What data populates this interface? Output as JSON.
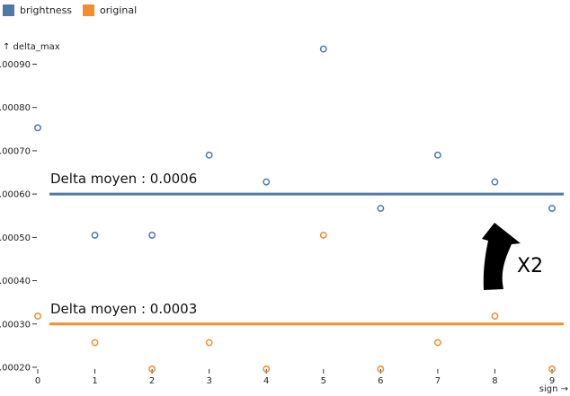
{
  "chart_data": {
    "type": "scatter",
    "xlabel": "sign →",
    "ylabel": "↑ delta_max",
    "xlim": [
      0,
      9
    ],
    "ylim": [
      0.0002,
      0.00093
    ],
    "grid": false,
    "legend_position": "top-left",
    "x_ticks": [
      0,
      1,
      2,
      3,
      4,
      5,
      6,
      7,
      8,
      9
    ],
    "y_ticks": [
      {
        "value": 0.0002,
        "label": ".00020"
      },
      {
        "value": 0.0003,
        "label": ".00030"
      },
      {
        "value": 0.0004,
        "label": ".00040"
      },
      {
        "value": 0.0005,
        "label": ".00050"
      },
      {
        "value": 0.0006,
        "label": ".00060"
      },
      {
        "value": 0.0007,
        "label": ".00070"
      },
      {
        "value": 0.0008,
        "label": ".00080"
      },
      {
        "value": 0.0009,
        "label": ".00090"
      }
    ],
    "series": [
      {
        "name": "brightness",
        "color": "#4e79a7",
        "x": [
          0,
          1,
          2,
          3,
          4,
          5,
          6,
          7,
          8,
          9
        ],
        "y": [
          0.000753,
          0.000505,
          0.000505,
          0.00069,
          0.000628,
          0.000935,
          0.000567,
          0.00069,
          0.000628,
          0.000567
        ]
      },
      {
        "name": "original",
        "color": "#f28e2b",
        "x": [
          0,
          1,
          2,
          3,
          4,
          5,
          6,
          7,
          8,
          9
        ],
        "y": [
          0.000318,
          0.000257,
          0.000196,
          0.000257,
          0.000196,
          0.000505,
          0.000196,
          0.000257,
          0.000318,
          0.000196
        ]
      }
    ],
    "annotations": [
      {
        "kind": "hline",
        "value": 0.0006,
        "color": "#4e79a7",
        "label": "Delta moyen : 0.0006"
      },
      {
        "kind": "hline",
        "value": 0.0003,
        "color": "#f28e2b",
        "label": "Delta moyen : 0.0003"
      },
      {
        "kind": "arrow",
        "label": "X2"
      }
    ]
  }
}
